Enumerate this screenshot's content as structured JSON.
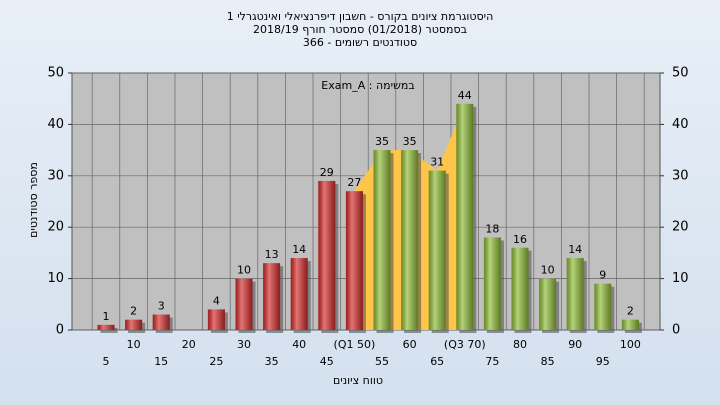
{
  "chart_data": {
    "type": "bar",
    "title": "היסטוגרמת ציונים בקורס - חשבון דיפרנציאלי ואינטגרלי 1",
    "subtitle": "בסמסטר  (01/2018)  סמסטר חורף 2018/19",
    "subtitle2": "סטודנטים רשומים - 366",
    "annotation": "במשימה : Exam_A",
    "x_label": "טווח ציונים",
    "y_label": "מספר סטודנטים",
    "categories": [
      "5",
      "10",
      "15",
      "20",
      "25",
      "30",
      "35",
      "40",
      "45",
      "(Q1 50)",
      "55",
      "60",
      "65",
      "(Q3 70)",
      "75",
      "80",
      "85",
      "90",
      "95",
      "100"
    ],
    "values": [
      1,
      2,
      3,
      null,
      4,
      10,
      13,
      14,
      29,
      27,
      35,
      35,
      31,
      44,
      18,
      16,
      10,
      14,
      9,
      2
    ],
    "colors": [
      "#d42a2a",
      "#d42a2a",
      "#d42a2a",
      "#d42a2a",
      "#d42a2a",
      "#d42a2a",
      "#d42a2a",
      "#d42a2a",
      "#d42a2a",
      "#d42a2a",
      "#8dbb34",
      "#8dbb34",
      "#8dbb34",
      "#8dbb34",
      "#8dbb34",
      "#8dbb34",
      "#8dbb34",
      "#8dbb34",
      "#8dbb34",
      "#8dbb34"
    ],
    "highlight_color": "#ffc44a",
    "ylim": [
      0,
      50
    ],
    "yticks": [
      0,
      10,
      20,
      30,
      40,
      50
    ],
    "grid": true
  }
}
